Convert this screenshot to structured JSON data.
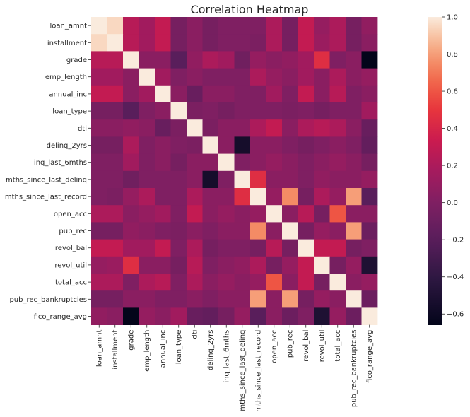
{
  "chart_data": {
    "type": "heatmap",
    "title": "Correlation Heatmap",
    "xlabel": "",
    "ylabel": "",
    "variables": [
      "loan_amnt",
      "installment",
      "grade",
      "emp_length",
      "annual_inc",
      "loan_type",
      "dti",
      "delinq_2yrs",
      "inq_last_6mths",
      "mths_since_last_delinq",
      "mths_since_last_record",
      "open_acc",
      "pub_rec",
      "revol_bal",
      "revol_util",
      "total_acc",
      "pub_rec_bankruptcies",
      "fico_range_avg"
    ],
    "colorbar": {
      "vmin": -0.66,
      "vmax": 1.0,
      "ticks": [
        1.0,
        0.8,
        0.6,
        0.4,
        0.2,
        0.0,
        -0.2,
        -0.4,
        -0.6
      ],
      "tick_labels": [
        "1.0",
        "0.8",
        "0.6",
        "0.4",
        "0.2",
        "0.0",
        "−0.2",
        "−0.4",
        "−0.6"
      ],
      "colormap": "rocket"
    },
    "matrix": [
      [
        1.0,
        0.95,
        0.25,
        0.15,
        0.3,
        -0.05,
        0.05,
        -0.05,
        0.0,
        0.0,
        0.0,
        0.2,
        -0.05,
        0.3,
        0.1,
        0.2,
        -0.05,
        0.08
      ],
      [
        0.95,
        1.0,
        0.25,
        0.15,
        0.3,
        -0.05,
        0.05,
        -0.05,
        0.0,
        0.0,
        -0.02,
        0.2,
        -0.05,
        0.3,
        0.12,
        0.2,
        -0.05,
        0.05
      ],
      [
        0.25,
        0.25,
        1.0,
        0.05,
        0.05,
        -0.2,
        0.08,
        0.2,
        0.15,
        -0.08,
        0.1,
        0.05,
        0.08,
        0.15,
        0.45,
        0.0,
        0.05,
        -0.66
      ],
      [
        0.15,
        0.15,
        0.05,
        1.0,
        0.15,
        0.0,
        0.05,
        0.0,
        0.0,
        0.0,
        0.2,
        0.1,
        0.05,
        0.15,
        0.05,
        0.2,
        0.05,
        0.1
      ],
      [
        0.3,
        0.3,
        0.05,
        0.15,
        1.0,
        0.05,
        -0.12,
        0.05,
        0.05,
        0.0,
        0.0,
        0.15,
        0.0,
        0.3,
        0.05,
        0.25,
        0.0,
        0.05
      ],
      [
        -0.05,
        -0.05,
        -0.2,
        0.0,
        0.05,
        1.0,
        -0.02,
        0.0,
        -0.05,
        0.0,
        0.0,
        0.0,
        -0.02,
        0.0,
        -0.05,
        0.0,
        0.0,
        0.15
      ],
      [
        0.05,
        0.05,
        0.08,
        0.05,
        -0.12,
        -0.02,
        1.0,
        -0.02,
        0.05,
        0.05,
        0.2,
        0.3,
        0.05,
        0.2,
        0.25,
        0.2,
        0.05,
        -0.12
      ],
      [
        -0.05,
        -0.05,
        0.2,
        0.0,
        0.05,
        0.0,
        -0.02,
        1.0,
        0.05,
        -0.55,
        0.05,
        0.05,
        0.0,
        -0.05,
        0.0,
        0.05,
        0.0,
        -0.15
      ],
      [
        0.0,
        0.0,
        0.15,
        0.0,
        0.05,
        -0.05,
        0.05,
        0.05,
        1.0,
        0.0,
        0.05,
        0.1,
        0.05,
        0.0,
        0.05,
        0.1,
        0.05,
        -0.05
      ],
      [
        0.0,
        0.0,
        -0.08,
        0.0,
        0.0,
        0.0,
        0.05,
        -0.55,
        0.0,
        1.0,
        0.45,
        0.05,
        0.05,
        0.0,
        0.08,
        0.05,
        0.05,
        0.1
      ],
      [
        0.0,
        -0.02,
        0.1,
        0.2,
        0.0,
        0.0,
        0.2,
        0.05,
        0.05,
        0.45,
        1.0,
        0.1,
        0.75,
        -0.05,
        0.2,
        0.1,
        0.8,
        -0.2
      ],
      [
        0.2,
        0.2,
        0.05,
        0.1,
        0.15,
        0.0,
        0.3,
        0.05,
        0.1,
        0.05,
        0.1,
        1.0,
        0.05,
        0.25,
        -0.05,
        0.6,
        0.05,
        0.05
      ],
      [
        -0.05,
        -0.05,
        0.08,
        0.05,
        0.0,
        -0.02,
        0.05,
        0.0,
        0.05,
        0.05,
        0.75,
        0.05,
        1.0,
        -0.05,
        0.1,
        0.05,
        0.8,
        -0.1
      ],
      [
        0.3,
        0.3,
        0.15,
        0.15,
        0.3,
        0.0,
        0.2,
        -0.05,
        0.0,
        0.0,
        -0.05,
        0.25,
        -0.05,
        1.0,
        0.3,
        0.3,
        -0.05,
        0.0
      ],
      [
        0.1,
        0.12,
        0.45,
        0.05,
        0.05,
        -0.05,
        0.25,
        0.0,
        0.05,
        0.08,
        0.2,
        -0.05,
        0.1,
        0.3,
        1.0,
        -0.05,
        0.1,
        -0.5
      ],
      [
        0.2,
        0.2,
        0.0,
        0.2,
        0.25,
        0.0,
        0.2,
        0.05,
        0.1,
        0.05,
        0.1,
        0.6,
        0.05,
        0.3,
        -0.05,
        1.0,
        0.05,
        0.1
      ],
      [
        -0.05,
        -0.05,
        0.05,
        0.05,
        0.0,
        0.0,
        0.05,
        0.0,
        0.05,
        0.05,
        0.8,
        0.05,
        0.8,
        -0.05,
        0.1,
        0.05,
        1.0,
        -0.1
      ],
      [
        0.08,
        0.05,
        -0.66,
        0.1,
        0.05,
        0.15,
        -0.12,
        -0.15,
        -0.05,
        0.1,
        -0.2,
        0.05,
        -0.1,
        0.0,
        -0.5,
        0.1,
        -0.1,
        1.0
      ]
    ]
  }
}
